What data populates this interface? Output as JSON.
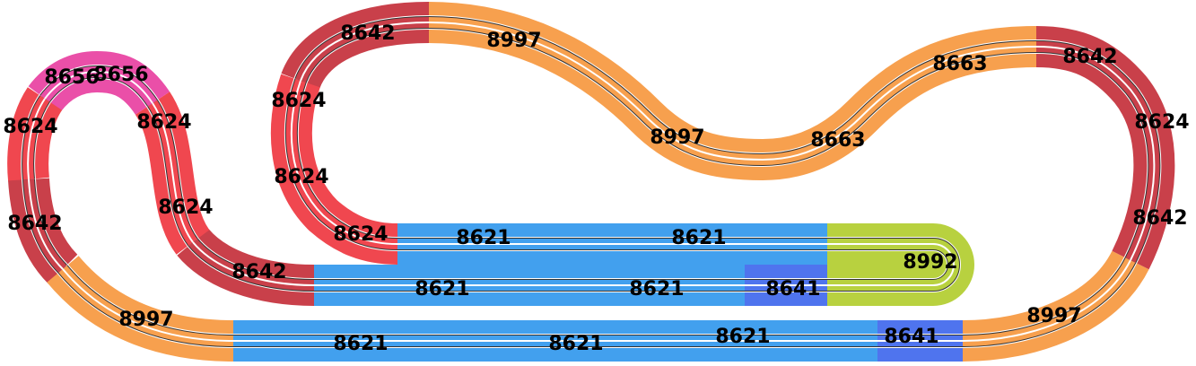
{
  "pieces": [
    {
      "label": "8642"
    },
    {
      "label": "8997"
    },
    {
      "label": "8624"
    },
    {
      "label": "8624"
    },
    {
      "label": "8624"
    },
    {
      "label": "8621"
    },
    {
      "label": "8621"
    },
    {
      "label": "8992"
    },
    {
      "label": "8997"
    },
    {
      "label": "8663"
    },
    {
      "label": "8663"
    },
    {
      "label": "8642"
    },
    {
      "label": "8624"
    },
    {
      "label": "8642"
    },
    {
      "label": "8997"
    },
    {
      "label": "8641"
    },
    {
      "label": "8621"
    },
    {
      "label": "8621"
    },
    {
      "label": "8621"
    },
    {
      "label": "8997"
    },
    {
      "label": "8642"
    },
    {
      "label": "8624"
    },
    {
      "label": "8656"
    },
    {
      "label": "8656"
    },
    {
      "label": "8624"
    },
    {
      "label": "8624"
    },
    {
      "label": "8642"
    },
    {
      "label": "8621"
    },
    {
      "label": "8621"
    },
    {
      "label": "8641"
    }
  ]
}
